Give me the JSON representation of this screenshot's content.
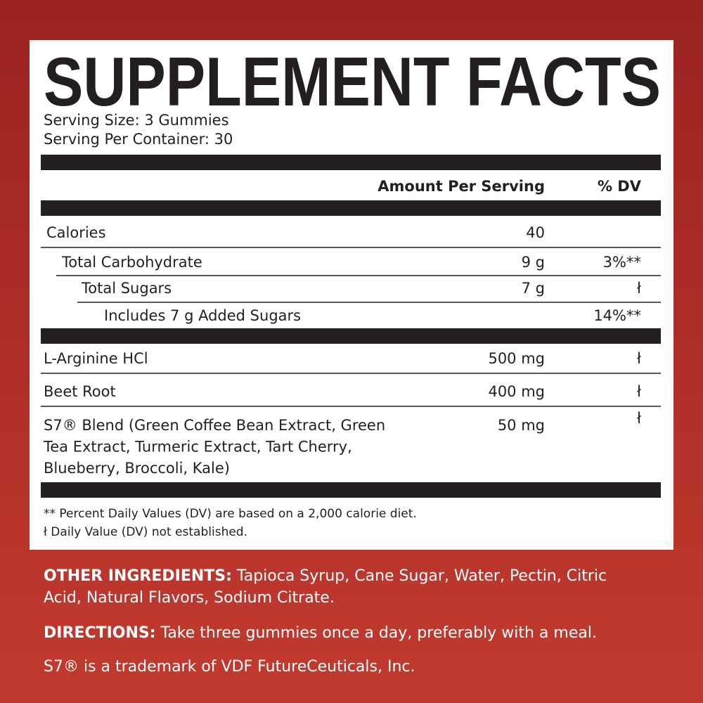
{
  "title": "SUPPLEMENT FACTS",
  "serving_size": "Serving Size: 3 Gummies",
  "servings_per_container": "Serving Per Container: 30",
  "header": {
    "amount": "Amount Per Serving",
    "dv": "% DV"
  },
  "nutrients": [
    {
      "name": "Calories",
      "amount": "40"
    },
    {
      "name": "Total Carbohydrate",
      "amount": "9 g",
      "dv": "3%**"
    },
    {
      "name": "Total Sugars",
      "amount": "7 g",
      "dv": "ł"
    },
    {
      "name": "Includes 7 g Added Sugars",
      "dv": "14%**"
    }
  ],
  "ingredients": [
    {
      "name": [
        "L-Arginine HCl"
      ],
      "amount": "500 mg",
      "dv": "ł"
    },
    {
      "name": [
        "Beet Root"
      ],
      "amount": "400 mg",
      "dv": "ł"
    },
    {
      "name": [
        "S7® Blend (Green Coffee Bean Extract, Green",
        "Tea Extract, Turmeric Extract, Tart Cherry,",
        "Blueberry, Broccoli, Kale)"
      ],
      "amount": "50 mg",
      "dv": "ł"
    }
  ],
  "footnotes": [
    "** Percent Daily Values (DV) are based on a 2,000 calorie diet.",
    "ł Daily Value (DV) not established."
  ],
  "other_ingredients": {
    "label": "OTHER INGREDIENTS:",
    "text": [
      "Tapioca Syrup, Cane Sugar, Water, Pectin, Citric",
      "Acid, Natural Flavors, Sodium Citrate."
    ]
  },
  "directions": {
    "label": "DIRECTIONS:",
    "text": "Take three gummies once a day, preferably with a meal."
  },
  "trademark": "S7® is a trademark of VDF FutureCeuticals, Inc."
}
